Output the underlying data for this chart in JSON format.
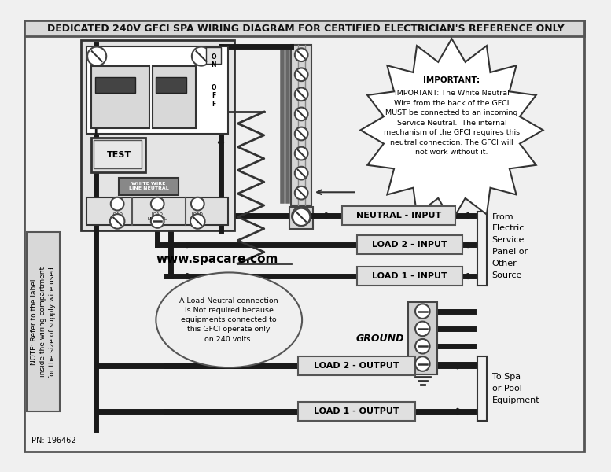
{
  "title": "DEDICATED 240V GFCI SPA WIRING DIAGRAM FOR CERTIFIED ELECTRICIAN'S REFERENCE ONLY",
  "bg_color": "#f0f0f0",
  "wire_color": "#1a1a1a",
  "website": "www.spacare.com",
  "pn": "PN: 196462",
  "note_label": "NOTE: Refer to the label\ninside the wiring compartment\nfor the size of supply wire used.",
  "important_text": "IMPORTANT: The White Neutral\nWire from the back of the GFCI\nMUST be connected to an incoming\nService Neutral.  The internal\nmechanism of the GFCI requires this\nneutral connection. The GFCI will\nnot work without it.",
  "load_neutral_text": "A Load Neutral connection\nis Not required because\nequipments connected to\nthis GFCI operate only\non 240 volts.",
  "from_text": "From\nElectric\nService\nPanel or\nOther\nSource",
  "to_text": "To Spa\nor Pool\nEquipment",
  "ground_text": "GROUND"
}
